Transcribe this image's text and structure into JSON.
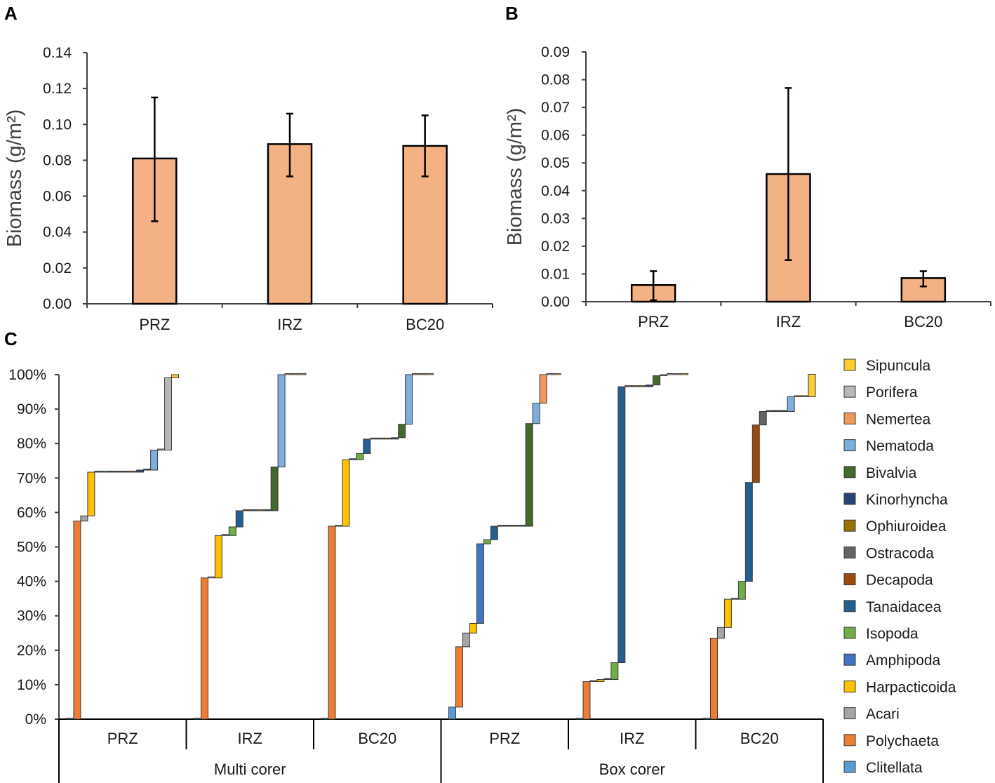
{
  "chart_data": [
    {
      "panel": "A",
      "type": "bar",
      "categories": [
        "PRZ",
        "IRZ",
        "BC20"
      ],
      "values": [
        0.081,
        0.089,
        0.088
      ],
      "error_low": [
        0.046,
        0.071,
        0.071
      ],
      "error_high": [
        0.115,
        0.106,
        0.105
      ],
      "ylabel": "Biomass (g/m²)",
      "ylim": [
        0,
        0.14
      ],
      "yticks": [
        "0.00",
        "0.02",
        "0.04",
        "0.06",
        "0.08",
        "0.10",
        "0.12",
        "0.14"
      ],
      "bar_color": "#f4b183"
    },
    {
      "panel": "B",
      "type": "bar",
      "categories": [
        "PRZ",
        "IRZ",
        "BC20"
      ],
      "values": [
        0.006,
        0.046,
        0.0085
      ],
      "error_low": [
        0.0005,
        0.015,
        0.0055
      ],
      "error_high": [
        0.011,
        0.077,
        0.011
      ],
      "ylabel": "Biomass (g/m²)",
      "ylim": [
        0,
        0.09
      ],
      "yticks": [
        "0.00",
        "0.01",
        "0.02",
        "0.03",
        "0.04",
        "0.05",
        "0.06",
        "0.07",
        "0.08",
        "0.09"
      ],
      "bar_color": "#f4b183"
    },
    {
      "panel": "C",
      "type": "bar",
      "subtype": "waterfall",
      "ylim": [
        0,
        100
      ],
      "yticks": [
        "0%",
        "10%",
        "20%",
        "30%",
        "40%",
        "50%",
        "60%",
        "70%",
        "80%",
        "90%",
        "100%"
      ],
      "groups": [
        {
          "name": "Multi corer",
          "sites": [
            "PRZ",
            "IRZ",
            "BC20"
          ]
        },
        {
          "name": "Box corer",
          "sites": [
            "PRZ",
            "IRZ",
            "BC20"
          ]
        }
      ],
      "taxa_order": [
        "Clitellata",
        "Polychaeta",
        "Acari",
        "Harpacticoida",
        "Amphipoda",
        "Isopoda",
        "Tanaidacea",
        "Decapoda",
        "Ostracoda",
        "Ophiuroidea",
        "Kinorhyncha",
        "Bivalvia",
        "Nematoda",
        "Nemertea",
        "Porifera",
        "Sipuncula"
      ],
      "colors": {
        "Clitellata": "#5b9bd5",
        "Polychaeta": "#ed7d31",
        "Acari": "#a5a5a5",
        "Harpacticoida": "#ffc000",
        "Amphipoda": "#4472c4",
        "Isopoda": "#70ad47",
        "Tanaidacea": "#255e91",
        "Decapoda": "#9e480e",
        "Ostracoda": "#636363",
        "Ophiuroidea": "#997300",
        "Kinorhyncha": "#264478",
        "Bivalvia": "#43682b",
        "Nematoda": "#7cafdd",
        "Nemertea": "#f1975a",
        "Porifera": "#b7b7b7",
        "Sipuncula": "#ffcd33"
      },
      "series": [
        {
          "group": "Multi corer",
          "site": "PRZ",
          "values": {
            "Clitellata": 0,
            "Polychaeta": 57.5,
            "Acari": 1.5,
            "Harpacticoida": 12.7,
            "Amphipoda": 0,
            "Isopoda": 0,
            "Tanaidacea": 0,
            "Decapoda": 0,
            "Ostracoda": 0,
            "Ophiuroidea": 0,
            "Kinorhyncha": 0.6,
            "Bivalvia": 0,
            "Nematoda": 5.8,
            "Nemertea": 0,
            "Porifera": 21.0,
            "Sipuncula": 0.9
          }
        },
        {
          "group": "Multi corer",
          "site": "IRZ",
          "values": {
            "Clitellata": 0,
            "Polychaeta": 41.0,
            "Acari": 0,
            "Harpacticoida": 12.3,
            "Amphipoda": 0,
            "Isopoda": 2.5,
            "Tanaidacea": 4.7,
            "Decapoda": 0,
            "Ostracoda": 0,
            "Ophiuroidea": 0,
            "Kinorhyncha": 0,
            "Bivalvia": 12.7,
            "Nematoda": 26.8,
            "Nemertea": 0,
            "Porifera": 0,
            "Sipuncula": 0
          }
        },
        {
          "group": "Multi corer",
          "site": "BC20",
          "values": {
            "Clitellata": 0,
            "Polychaeta": 56.0,
            "Acari": 0,
            "Harpacticoida": 19.3,
            "Amphipoda": 0,
            "Isopoda": 1.8,
            "Tanaidacea": 4.2,
            "Decapoda": 0,
            "Ostracoda": 0,
            "Ophiuroidea": 0,
            "Kinorhyncha": 0.4,
            "Bivalvia": 3.9,
            "Nematoda": 14.4,
            "Nemertea": 0,
            "Porifera": 0,
            "Sipuncula": 0
          }
        },
        {
          "group": "Box corer",
          "site": "PRZ",
          "values": {
            "Clitellata": 3.5,
            "Polychaeta": 17.5,
            "Acari": 4.0,
            "Harpacticoida": 2.8,
            "Amphipoda": 23.1,
            "Isopoda": 1.2,
            "Tanaidacea": 3.9,
            "Decapoda": 0,
            "Ostracoda": 0,
            "Ophiuroidea": 0,
            "Kinorhyncha": 0,
            "Bivalvia": 29.8,
            "Nematoda": 5.9,
            "Nemertea": 8.3,
            "Porifera": 0,
            "Sipuncula": 0
          }
        },
        {
          "group": "Box corer",
          "site": "IRZ",
          "values": {
            "Clitellata": 0,
            "Polychaeta": 10.9,
            "Acari": 0,
            "Harpacticoida": 0.6,
            "Amphipoda": 0,
            "Isopoda": 4.9,
            "Tanaidacea": 80.1,
            "Decapoda": 0,
            "Ostracoda": 0,
            "Ophiuroidea": 0,
            "Kinorhyncha": 0.5,
            "Bivalvia": 2.7,
            "Nematoda": 0.3,
            "Nemertea": 0,
            "Porifera": 0,
            "Sipuncula": 0
          }
        },
        {
          "group": "Box corer",
          "site": "BC20",
          "values": {
            "Clitellata": 0,
            "Polychaeta": 23.5,
            "Acari": 3.1,
            "Harpacticoida": 8.2,
            "Amphipoda": 0,
            "Isopoda": 5.2,
            "Tanaidacea": 28.7,
            "Decapoda": 16.7,
            "Ostracoda": 3.9,
            "Ophiuroidea": 0,
            "Kinorhyncha": 0,
            "Bivalvia": 0,
            "Nematoda": 4.3,
            "Nemertea": 0,
            "Porifera": 0,
            "Sipuncula": 6.5
          }
        }
      ],
      "legend": [
        "Sipuncula",
        "Porifera",
        "Nemertea",
        "Nematoda",
        "Bivalvia",
        "Kinorhyncha",
        "Ophiuroidea",
        "Ostracoda",
        "Decapoda",
        "Tanaidacea",
        "Isopoda",
        "Amphipoda",
        "Harpacticoida",
        "Acari",
        "Polychaeta",
        "Clitellata"
      ],
      "legend_position": "right"
    }
  ]
}
